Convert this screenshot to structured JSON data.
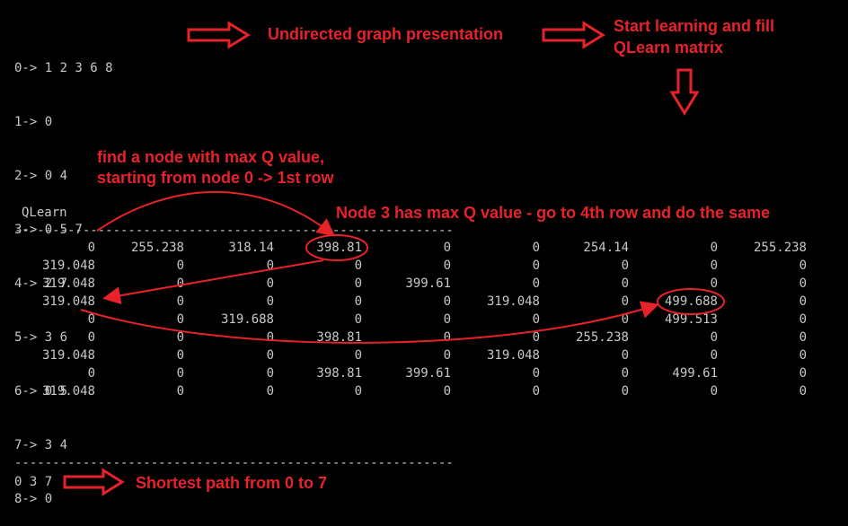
{
  "adjacency": [
    "0-> 1 2 3 6 8",
    "1-> 0",
    "2-> 0 4",
    "3-> 0 5 7",
    "4-> 2 7",
    "5-> 3 6",
    "6-> 0 5",
    "7-> 3 4",
    "8-> 0"
  ],
  "annotations": {
    "undirected": "Undirected graph presentation",
    "start_line1": "Start learning and fill",
    "start_line2": "QLearn matrix",
    "find_line1": "find a node with max Q value,",
    "find_line2": "starting from node 0 -> 1st row",
    "node3": "Node 3 has max Q value - go to 4th row and do the same",
    "shortest": "Shortest path from 0 to 7"
  },
  "qlearn": {
    "title": "QLearn",
    "separator": "---------------------------------------------------------------------",
    "rows": [
      [
        "0",
        "255.238",
        "318.14",
        "398.81",
        "0",
        "0",
        "254.14",
        "0",
        "255.238"
      ],
      [
        "319.048",
        "0",
        "0",
        "0",
        "0",
        "0",
        "0",
        "0",
        "0"
      ],
      [
        "319.048",
        "0",
        "0",
        "0",
        "399.61",
        "0",
        "0",
        "0",
        "0"
      ],
      [
        "319.048",
        "0",
        "0",
        "0",
        "0",
        "319.048",
        "0",
        "499.688",
        "0"
      ],
      [
        "0",
        "0",
        "319.688",
        "0",
        "0",
        "0",
        "0",
        "499.513",
        "0"
      ],
      [
        "0",
        "0",
        "0",
        "398.81",
        "0",
        "0",
        "255.238",
        "0",
        "0"
      ],
      [
        "319.048",
        "0",
        "0",
        "0",
        "0",
        "319.048",
        "0",
        "0",
        "0"
      ],
      [
        "0",
        "0",
        "0",
        "398.81",
        "399.61",
        "0",
        "0",
        "499.61",
        "0"
      ],
      [
        "319.048",
        "0",
        "0",
        "0",
        "0",
        "0",
        "0",
        "0",
        "0"
      ]
    ]
  },
  "path": {
    "separator": "---------------------------------------------------------------------",
    "value": "0 3 7"
  },
  "colors": {
    "annotation": "#e8222a",
    "text": "#c8c8c8",
    "background": "#000000"
  }
}
